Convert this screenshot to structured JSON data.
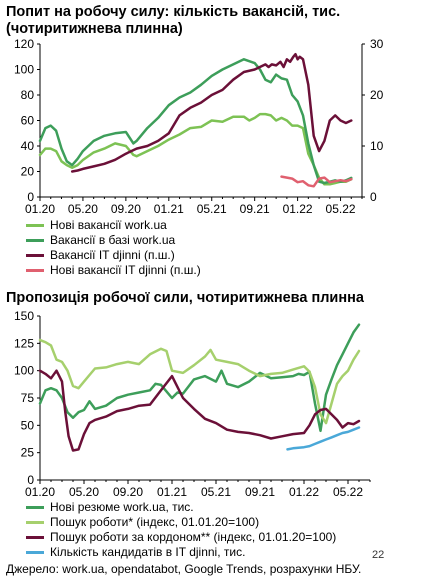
{
  "page": {
    "source": "Джерело: work.ua, opendatabot, Google Trends, розрахунки НБУ.",
    "page_number": "22"
  },
  "chart_data": [
    {
      "type": "line",
      "title": "Попит на робочу силу: кількість вакансій, тис. (чотиритижнева плинна)",
      "xlabel": "",
      "ylabel": "",
      "x_ticks": [
        "01.20",
        "05.20",
        "09.20",
        "01.21",
        "05.21",
        "09.21",
        "01.22",
        "05.22"
      ],
      "ylim": [
        0,
        120
      ],
      "y_ticks": [
        0,
        20,
        40,
        60,
        80,
        100,
        120
      ],
      "y2lim": [
        0,
        30
      ],
      "y2_ticks": [
        0,
        10,
        20,
        30
      ],
      "x_range": [
        0,
        30
      ],
      "grid": false,
      "legend_position": "below",
      "series": [
        {
          "name": "Нові вакансії work.ua",
          "axis": "left",
          "color": "#7dc254",
          "width": 2.5,
          "x": [
            0,
            0.5,
            1,
            1.5,
            2,
            2.5,
            3,
            3.5,
            4,
            5,
            6,
            7,
            8,
            8.7,
            9,
            10,
            11,
            12,
            13,
            14,
            15,
            16,
            17,
            18,
            19,
            19.5,
            20,
            20.5,
            21,
            21.5,
            22,
            22.5,
            23,
            23.5,
            24,
            24.5,
            25,
            25.5,
            26,
            26.5,
            27,
            27.5,
            28,
            28.5,
            29
          ],
          "y": [
            33,
            38,
            38,
            36,
            28,
            25,
            23,
            25,
            29,
            35,
            38,
            42,
            40,
            33,
            32,
            36,
            40,
            45,
            49,
            54,
            55,
            60,
            59,
            63,
            63,
            60,
            62,
            65,
            65,
            64,
            60,
            62,
            60,
            56,
            56,
            54,
            34,
            25,
            15,
            10,
            10,
            11,
            12,
            12,
            14
          ]
        },
        {
          "name": "Вакансії в базі work.ua",
          "axis": "left",
          "color": "#3d9e5a",
          "width": 2.5,
          "x": [
            0,
            0.5,
            1,
            1.5,
            2,
            2.5,
            3,
            3.5,
            4,
            5,
            6,
            7,
            8,
            8.7,
            9,
            10,
            11,
            12,
            13,
            14,
            15,
            16,
            17,
            18,
            19,
            20,
            20.5,
            21,
            21.5,
            22,
            22.5,
            23,
            23.5,
            24,
            24.5,
            25,
            25.5,
            26,
            26.5,
            27,
            27.5,
            28,
            28.5,
            29
          ],
          "y": [
            44,
            54,
            56,
            52,
            38,
            28,
            25,
            30,
            36,
            44,
            48,
            50,
            51,
            42,
            44,
            54,
            62,
            72,
            78,
            82,
            88,
            95,
            100,
            104,
            108,
            105,
            100,
            92,
            90,
            96,
            93,
            92,
            80,
            75,
            64,
            42,
            25,
            12,
            11,
            12,
            13,
            12,
            13,
            15
          ]
        },
        {
          "name": "Вакансії IT djinni (п.ш.)",
          "axis": "right",
          "color": "#6b1038",
          "width": 2.5,
          "x": [
            3,
            3.5,
            4,
            5,
            6,
            7,
            8,
            9,
            10,
            11,
            12,
            13,
            14,
            15,
            16,
            17,
            18,
            19,
            20,
            21,
            21.3,
            21.6,
            22,
            22.4,
            22.7,
            23,
            23.3,
            23.6,
            23.8,
            24,
            24.2,
            24.5,
            25,
            25.5,
            26,
            26.5,
            27,
            27.5,
            28,
            28.5,
            29
          ],
          "y": [
            5,
            5.2,
            5.5,
            6,
            6.5,
            7.3,
            8.5,
            9.5,
            10,
            11,
            12.5,
            16,
            17.5,
            18.5,
            20,
            21,
            23,
            24.5,
            25,
            26,
            25.5,
            26,
            25.8,
            26.5,
            25.5,
            27,
            26.5,
            27.5,
            28,
            27,
            27.5,
            27,
            22,
            12,
            9,
            11,
            15,
            16,
            15,
            14.5,
            15
          ]
        },
        {
          "name": "Нові вакансії IT djinni (п.ш.)",
          "axis": "right",
          "color": "#e0606f",
          "width": 2.5,
          "x": [
            22.5,
            23,
            23.5,
            24,
            24.5,
            25,
            25.5,
            26,
            26.5,
            27,
            27.5,
            28,
            28.5,
            29
          ],
          "y": [
            4,
            3.8,
            3.6,
            2.9,
            3.1,
            2.3,
            2.1,
            3.6,
            3.8,
            2.9,
            3.1,
            3.3,
            3.1,
            3.5
          ]
        }
      ]
    },
    {
      "type": "line",
      "title": "Пропозиція робочої сили, чотиритижнева плинна",
      "xlabel": "",
      "ylabel": "",
      "x_ticks": [
        "01.20",
        "05.20",
        "09.20",
        "01.21",
        "05.21",
        "09.21",
        "01.22",
        "05.22"
      ],
      "ylim": [
        0,
        150
      ],
      "y_ticks": [
        0,
        25,
        50,
        75,
        100,
        125,
        150
      ],
      "x_range": [
        0,
        30
      ],
      "grid": false,
      "legend_position": "below",
      "series": [
        {
          "name": "Нові резюме work.ua, тис.",
          "axis": "left",
          "color": "#3d9e5a",
          "width": 2.5,
          "x": [
            0,
            0.5,
            1,
            1.5,
            2,
            2.5,
            3,
            3.5,
            4,
            4.5,
            5,
            6,
            7,
            8,
            9,
            10,
            10.5,
            11,
            12,
            12.5,
            13,
            14,
            15,
            16,
            16.5,
            17,
            18,
            19,
            20,
            21,
            22,
            23,
            23.5,
            24,
            24.5,
            25,
            25.5,
            26,
            26.5,
            27,
            27.5,
            28,
            28.5,
            29
          ],
          "y": [
            70,
            82,
            84,
            82,
            75,
            62,
            57,
            62,
            64,
            72,
            65,
            68,
            75,
            78,
            80,
            82,
            88,
            87,
            75,
            80,
            79,
            92,
            95,
            90,
            100,
            88,
            85,
            90,
            98,
            93,
            94,
            95,
            97,
            96,
            99,
            70,
            45,
            78,
            92,
            105,
            115,
            125,
            135,
            142
          ]
        },
        {
          "name": "Пошук роботи* (індекс, 01.01.20=100)",
          "axis": "left",
          "color": "#a6d06d",
          "width": 2.5,
          "x": [
            0,
            0.5,
            1,
            1.5,
            2,
            2.5,
            3,
            3.5,
            4,
            4.5,
            5,
            6,
            7,
            8,
            9,
            10,
            11,
            11.5,
            12,
            13,
            14,
            15,
            15.5,
            16,
            17,
            18,
            19,
            20,
            21,
            22,
            23,
            24,
            24.5,
            25,
            25.5,
            26,
            26.5,
            27,
            27.5,
            28,
            28.5,
            29
          ],
          "y": [
            128,
            126,
            123,
            110,
            108,
            100,
            86,
            84,
            90,
            96,
            102,
            103,
            106,
            108,
            106,
            115,
            120,
            118,
            100,
            98,
            105,
            113,
            119,
            110,
            108,
            106,
            100,
            95,
            97,
            98,
            101,
            104,
            99,
            85,
            60,
            52,
            70,
            88,
            95,
            100,
            110,
            118
          ]
        },
        {
          "name": "Пошук роботи за кордоном** (індекс, 01.01.20=100)",
          "axis": "left",
          "color": "#6b1038",
          "width": 2.5,
          "x": [
            0,
            0.5,
            1,
            1.5,
            2,
            2.3,
            2.6,
            3,
            3.5,
            4,
            4.5,
            5,
            6,
            7,
            8,
            9,
            10,
            11,
            12,
            13,
            14,
            15,
            16,
            17,
            18,
            19,
            20,
            21,
            22,
            23,
            24,
            24.5,
            25,
            25.5,
            26,
            26.5,
            27,
            27.5,
            28,
            28.5,
            29
          ],
          "y": [
            100,
            97,
            93,
            100,
            90,
            62,
            40,
            27,
            28,
            42,
            52,
            55,
            58,
            63,
            65,
            68,
            69,
            82,
            95,
            75,
            65,
            56,
            52,
            46,
            44,
            43,
            41,
            38,
            40,
            42,
            43,
            50,
            60,
            64,
            65,
            60,
            55,
            48,
            52,
            51,
            54
          ]
        },
        {
          "name": "Кількість кандидатів в IT djinni, тис.",
          "axis": "left",
          "color": "#4aa8d8",
          "width": 2.5,
          "x": [
            22.5,
            23,
            23.5,
            24,
            24.5,
            25,
            25.5,
            26,
            26.5,
            27,
            27.5,
            28,
            28.5,
            29
          ],
          "y": [
            28,
            29,
            29.5,
            30,
            31,
            33,
            35,
            37,
            39,
            41,
            43,
            44,
            46,
            48
          ]
        }
      ]
    }
  ]
}
